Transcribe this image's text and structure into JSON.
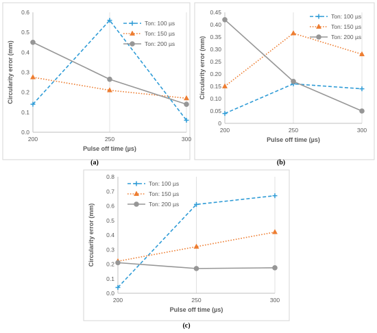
{
  "chart_data": [
    {
      "type": "line",
      "caption": "(a)",
      "xlabel": "Pulse off time (µs)",
      "ylabel": "Circularity error (mm)",
      "x": [
        200,
        250,
        300
      ],
      "xlim": [
        200,
        300
      ],
      "ylim": [
        0,
        0.6
      ],
      "yticks": [
        "0.0",
        "0.1",
        "0.2",
        "0.3",
        "0.4",
        "0.5",
        "0.6"
      ],
      "xticks": [
        "200",
        "250",
        "300"
      ],
      "grid": "vertical",
      "legend": "top-right",
      "series": [
        {
          "name": "Ton: 100 µs",
          "values": [
            0.14,
            0.56,
            0.06
          ],
          "color": "#2e9bd6",
          "dash": "dashed",
          "marker": "plus"
        },
        {
          "name": "Ton: 150 µs",
          "values": [
            0.275,
            0.21,
            0.17
          ],
          "color": "#ed7d31",
          "dash": "dotted",
          "marker": "triangle"
        },
        {
          "name": "Ton: 200 µs",
          "values": [
            0.45,
            0.265,
            0.14
          ],
          "color": "#969696",
          "dash": "solid",
          "marker": "circle"
        }
      ]
    },
    {
      "type": "line",
      "caption": "(b)",
      "xlabel": "Pulse off time (µs)",
      "ylabel": "Circularity error (mm)",
      "x": [
        200,
        250,
        300
      ],
      "xlim": [
        200,
        300
      ],
      "ylim": [
        0,
        0.45
      ],
      "yticks": [
        "0",
        "0.05",
        "0.10",
        "0.15",
        "0.20",
        "0.25",
        "0.30",
        "0.35",
        "0.40",
        "0.45"
      ],
      "xticks": [
        "200",
        "250",
        "300"
      ],
      "grid": "vertical",
      "legend": "top-right",
      "series": [
        {
          "name": "Ton: 100 µs",
          "values": [
            0.04,
            0.16,
            0.14
          ],
          "color": "#2e9bd6",
          "dash": "dashed",
          "marker": "plus"
        },
        {
          "name": "Ton: 150 µs",
          "values": [
            0.15,
            0.365,
            0.28
          ],
          "color": "#ed7d31",
          "dash": "dotted",
          "marker": "triangle"
        },
        {
          "name": "Ton: 200 µs",
          "values": [
            0.42,
            0.17,
            0.05
          ],
          "color": "#969696",
          "dash": "solid",
          "marker": "circle"
        }
      ]
    },
    {
      "type": "line",
      "caption": "(c)",
      "xlabel": "Pulse off time (µs)",
      "ylabel": "Circularity error (mm)",
      "x": [
        200,
        250,
        300
      ],
      "xlim": [
        200,
        300
      ],
      "ylim": [
        0,
        0.8
      ],
      "yticks": [
        "0.0",
        "0.1",
        "0.2",
        "0.3",
        "0.4",
        "0.5",
        "0.6",
        "0.7",
        "0.8"
      ],
      "xticks": [
        "200",
        "250",
        "300"
      ],
      "grid": "vertical",
      "legend": "top-left",
      "series": [
        {
          "name": "Ton: 100 µs",
          "values": [
            0.04,
            0.61,
            0.67
          ],
          "color": "#2e9bd6",
          "dash": "dashed",
          "marker": "plus"
        },
        {
          "name": "Ton: 150 µs",
          "values": [
            0.22,
            0.32,
            0.42
          ],
          "color": "#ed7d31",
          "dash": "dotted",
          "marker": "triangle"
        },
        {
          "name": "Ton: 200 µs",
          "values": [
            0.21,
            0.17,
            0.175
          ],
          "color": "#969696",
          "dash": "solid",
          "marker": "circle"
        }
      ]
    }
  ]
}
